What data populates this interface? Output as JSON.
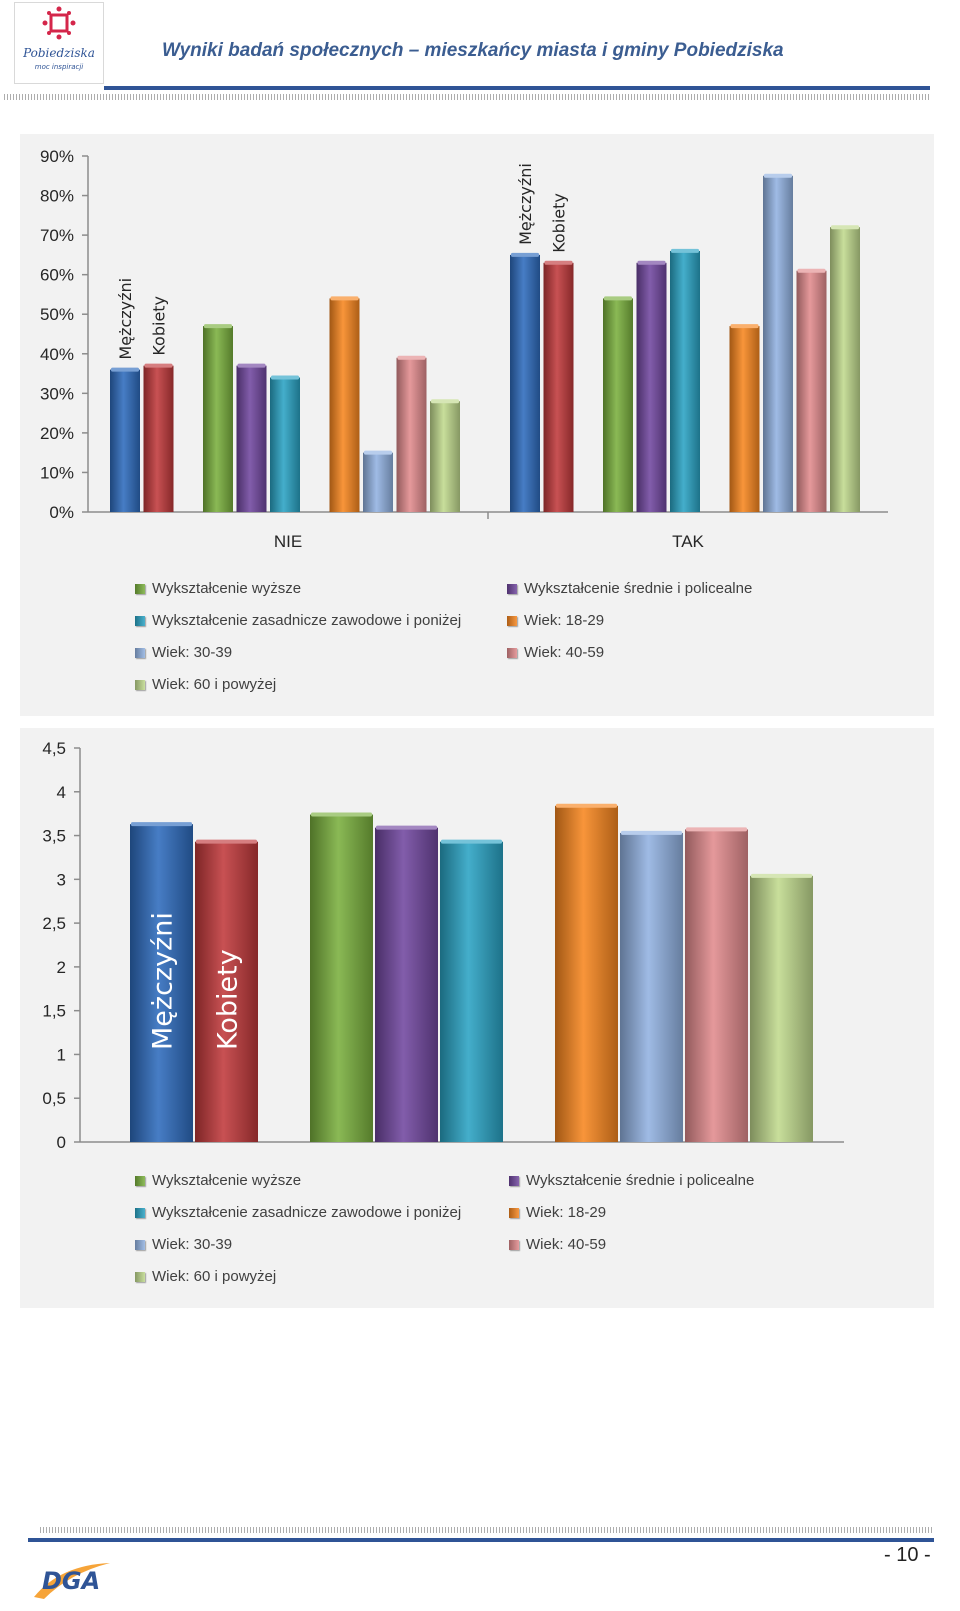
{
  "header": {
    "title": "Wyniki badań społecznych – mieszkańcy miasta i gminy Pobiedziska",
    "logo_text": "Pobiedziska",
    "logo_subtext": "moc inspiracji"
  },
  "footer": {
    "page_number": "- 10 -",
    "logo_text": "DGA"
  },
  "colors": {
    "Mężczyźni": "#2e6bbd",
    "Kobiety": "#c0393b",
    "Wykształcenie wyższe": "#7ab03e",
    "Wykształcenie średnie i policealne": "#71479f",
    "Wykształcenie zasadnicze zawodowe i poniżej": "#2aa3c4",
    "Wiek: 18-29": "#f7861f",
    "Wiek: 30-39": "#92b2e2",
    "Wiek: 40-59": "#e18b8d",
    "Wiek: 60 i powyżej": "#c0d98d"
  },
  "chart_data": [
    {
      "type": "bar",
      "categories": [
        "NIE",
        "TAK"
      ],
      "ylim": [
        0,
        90
      ],
      "yticks": [
        "0%",
        "10%",
        "20%",
        "30%",
        "40%",
        "50%",
        "60%",
        "70%",
        "80%",
        "90%"
      ],
      "bar_labels": [
        "Mężczyźni",
        "Kobiety"
      ],
      "series": [
        {
          "name": "Mężczyźni",
          "values": [
            36,
            65
          ]
        },
        {
          "name": "Kobiety",
          "values": [
            37,
            63
          ]
        },
        {
          "name": "Wykształcenie wyższe",
          "values": [
            47,
            54
          ]
        },
        {
          "name": "Wykształcenie średnie i policealne",
          "values": [
            37,
            63
          ]
        },
        {
          "name": "Wykształcenie zasadnicze zawodowe i poniżej",
          "values": [
            34,
            66
          ]
        },
        {
          "name": "Wiek: 18-29",
          "values": [
            54,
            47
          ]
        },
        {
          "name": "Wiek: 30-39",
          "values": [
            15,
            85
          ]
        },
        {
          "name": "Wiek: 40-59",
          "values": [
            39,
            61
          ]
        },
        {
          "name": "Wiek: 60 i powyżej",
          "values": [
            28,
            72
          ]
        }
      ],
      "legend": [
        "Wykształcenie wyższe",
        "Wykształcenie średnie i policealne",
        "Wykształcenie zasadnicze zawodowe i poniżej",
        "Wiek: 18-29",
        "Wiek: 30-39",
        "Wiek: 40-59",
        "Wiek: 60 i powyżej"
      ]
    },
    {
      "type": "bar",
      "categories": [
        ""
      ],
      "ylim": [
        0,
        4.5
      ],
      "yticks": [
        "0",
        "0,5",
        "1",
        "1,5",
        "2",
        "2,5",
        "3",
        "3,5",
        "4",
        "4,5"
      ],
      "bar_labels": [
        "Mężczyźni",
        "Kobiety"
      ],
      "series": [
        {
          "name": "Mężczyźni",
          "values": [
            3.63
          ]
        },
        {
          "name": "Kobiety",
          "values": [
            3.43
          ]
        },
        {
          "name": "Wykształcenie wyższe",
          "values": [
            3.74
          ]
        },
        {
          "name": "Wykształcenie średnie i policealne",
          "values": [
            3.59
          ]
        },
        {
          "name": "Wykształcenie zasadnicze zawodowe i poniżej",
          "values": [
            3.43
          ]
        },
        {
          "name": "Wiek: 18-29",
          "values": [
            3.84
          ]
        },
        {
          "name": "Wiek: 30-39",
          "values": [
            3.53
          ]
        },
        {
          "name": "Wiek: 40-59",
          "values": [
            3.57
          ]
        },
        {
          "name": "Wiek: 60 i powyżej",
          "values": [
            3.04
          ]
        }
      ],
      "legend": [
        "Wykształcenie wyższe",
        "Wykształcenie średnie i policealne",
        "Wykształcenie zasadnicze zawodowe i poniżej",
        "Wiek: 18-29",
        "Wiek: 30-39",
        "Wiek: 40-59",
        "Wiek: 60 i powyżej"
      ]
    }
  ]
}
